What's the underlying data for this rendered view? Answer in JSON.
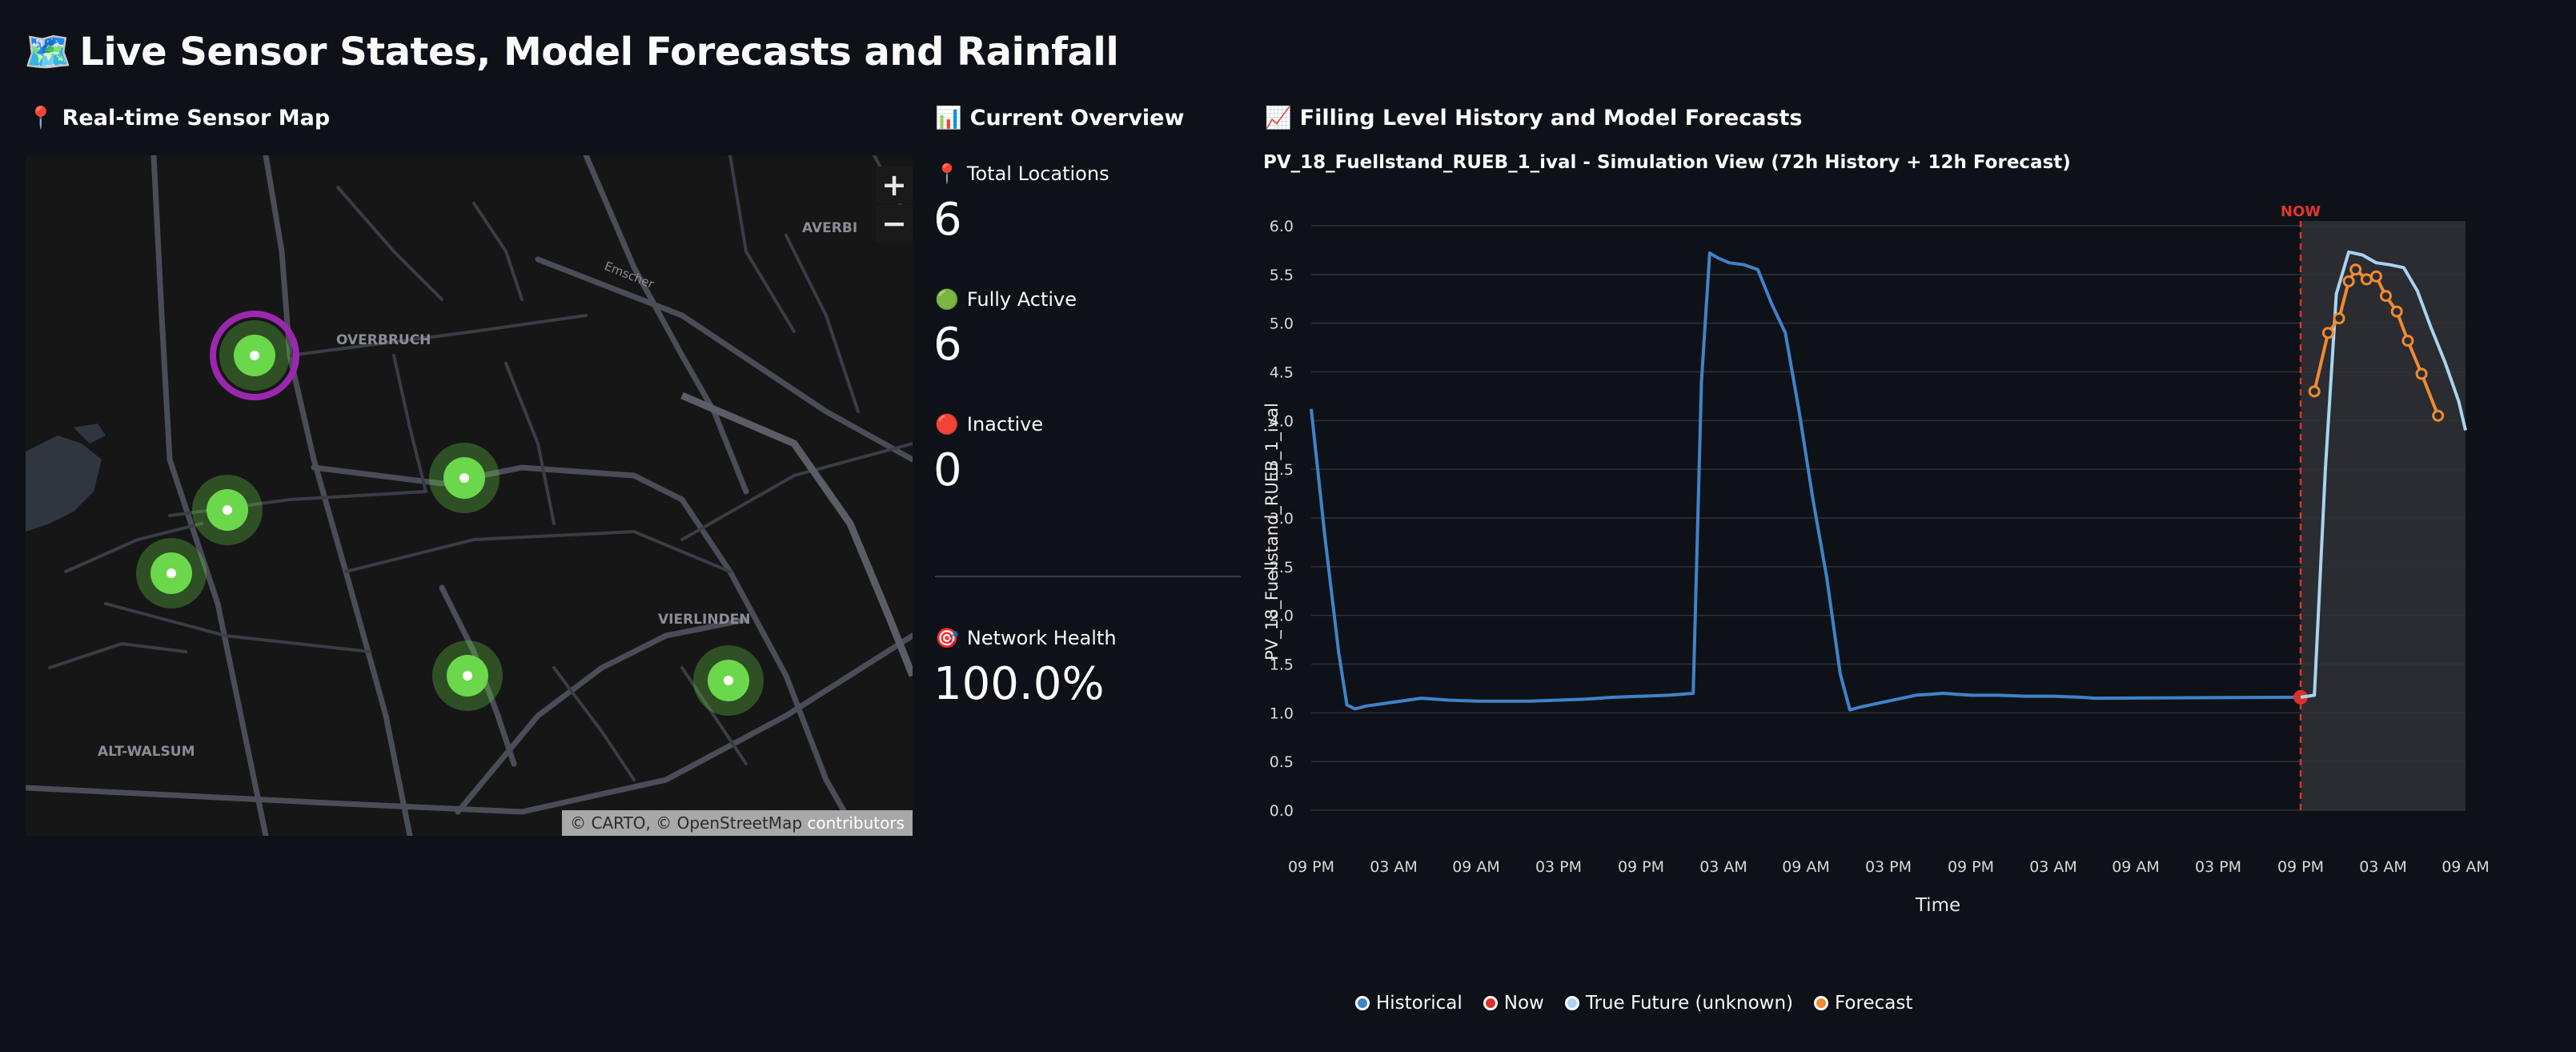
{
  "page": {
    "title_icon": "🗺️",
    "title": "Live Sensor States, Model Forecasts and Rainfall"
  },
  "map_section": {
    "icon": "📍",
    "title": "Real-time Sensor Map",
    "zoom_in": "+",
    "zoom_out": "−",
    "labels": [
      "OVERBRUCH",
      "VIERLINDEN",
      "ALT-WALSUM",
      "AVERBI",
      "Emscher"
    ],
    "attribution_prefix": "© CARTO, © OpenStreetMap",
    "attribution_link": "contributors",
    "markers": [
      {
        "selected": true
      },
      {
        "selected": false
      },
      {
        "selected": false
      },
      {
        "selected": false
      },
      {
        "selected": false
      },
      {
        "selected": false
      }
    ],
    "colors": {
      "marker": "#6ad84a",
      "selected_ring": "#9b27b0",
      "road": "#4a4d57",
      "water": "#2f3640"
    }
  },
  "overview": {
    "icon": "📊",
    "title": "Current Overview",
    "metrics": [
      {
        "icon": "📍",
        "label": "Total Locations",
        "value": "6"
      },
      {
        "icon": "🟢",
        "label": "Fully Active",
        "value": "6"
      },
      {
        "icon": "🔴",
        "label": "Inactive",
        "value": "0"
      },
      {
        "icon": "🎯",
        "label": "Network Health",
        "value": "100.0%"
      }
    ]
  },
  "forecast": {
    "icon": "📈",
    "title": "Filling Level History and Model Forecasts",
    "subtitle": "PV_18_Fuellstand_RUEB_1_ival - Simulation View (72h History + 12h Forecast)"
  },
  "chart_data": {
    "type": "line",
    "title": "PV_18_Fuellstand_RUEB_1_ival - Simulation View (72h History + 12h Forecast)",
    "xlabel": "Time",
    "ylabel": "PV_18_Fuellstand_RUEB_1_ival",
    "xlim": [
      0,
      84
    ],
    "ylim": [
      0,
      6
    ],
    "yticks": [
      0.0,
      0.5,
      1.0,
      1.5,
      2.0,
      2.5,
      3.0,
      3.5,
      4.0,
      4.5,
      5.0,
      5.5,
      6.0
    ],
    "xticks": [
      {
        "h": 0,
        "label": "09 PM"
      },
      {
        "h": 6,
        "label": "03 AM"
      },
      {
        "h": 12,
        "label": "09 AM"
      },
      {
        "h": 18,
        "label": "03 PM"
      },
      {
        "h": 24,
        "label": "09 PM"
      },
      {
        "h": 30,
        "label": "03 AM"
      },
      {
        "h": 36,
        "label": "09 AM"
      },
      {
        "h": 42,
        "label": "03 PM"
      },
      {
        "h": 48,
        "label": "09 PM"
      },
      {
        "h": 54,
        "label": "03 AM"
      },
      {
        "h": 60,
        "label": "09 AM"
      },
      {
        "h": 66,
        "label": "03 PM"
      },
      {
        "h": 72,
        "label": "09 PM"
      },
      {
        "h": 78,
        "label": "03 AM"
      },
      {
        "h": 84,
        "label": "09 AM"
      }
    ],
    "now_label": "NOW",
    "now_x": 72,
    "forecast_region": [
      72,
      84
    ],
    "grid": true,
    "legend_position": "bottom",
    "colors": {
      "Historical": "#3f83c9",
      "Now": "#d9332b",
      "True Future (unknown)": "#a9d3f0",
      "Forecast": "#f08a32"
    },
    "series": [
      {
        "name": "Historical",
        "points": [
          [
            0,
            4.12
          ],
          [
            1,
            2.8
          ],
          [
            2,
            1.62
          ],
          [
            2.6,
            1.08
          ],
          [
            3.2,
            1.04
          ],
          [
            4,
            1.07
          ],
          [
            6,
            1.11
          ],
          [
            8,
            1.15
          ],
          [
            10,
            1.13
          ],
          [
            12,
            1.12
          ],
          [
            14,
            1.12
          ],
          [
            16,
            1.12
          ],
          [
            18,
            1.13
          ],
          [
            20,
            1.14
          ],
          [
            22,
            1.16
          ],
          [
            24,
            1.17
          ],
          [
            26,
            1.18
          ],
          [
            27.8,
            1.2
          ],
          [
            28.4,
            4.4
          ],
          [
            29,
            5.72
          ],
          [
            29.6,
            5.67
          ],
          [
            30.4,
            5.62
          ],
          [
            31.5,
            5.6
          ],
          [
            32.5,
            5.55
          ],
          [
            33.5,
            5.2
          ],
          [
            34.5,
            4.9
          ],
          [
            35.5,
            4.1
          ],
          [
            36.5,
            3.2
          ],
          [
            37.5,
            2.4
          ],
          [
            38.5,
            1.4
          ],
          [
            39.2,
            1.03
          ],
          [
            40,
            1.06
          ],
          [
            42,
            1.12
          ],
          [
            44,
            1.18
          ],
          [
            46,
            1.2
          ],
          [
            48,
            1.18
          ],
          [
            50,
            1.18
          ],
          [
            52,
            1.17
          ],
          [
            54,
            1.17
          ],
          [
            56,
            1.16
          ],
          [
            57,
            1.15
          ],
          [
            72,
            1.16
          ]
        ]
      },
      {
        "name": "Now",
        "points": [
          [
            72,
            1.16
          ]
        ]
      },
      {
        "name": "True Future (unknown)",
        "points": [
          [
            72,
            1.16
          ],
          [
            73,
            1.18
          ],
          [
            73.8,
            3.5
          ],
          [
            74.6,
            5.3
          ],
          [
            75.5,
            5.73
          ],
          [
            76.5,
            5.7
          ],
          [
            77.5,
            5.62
          ],
          [
            78.5,
            5.6
          ],
          [
            79.5,
            5.57
          ],
          [
            80.5,
            5.33
          ],
          [
            81.5,
            4.95
          ],
          [
            82.5,
            4.6
          ],
          [
            83.5,
            4.2
          ],
          [
            84,
            3.9
          ]
        ]
      },
      {
        "name": "Forecast",
        "points": [
          [
            73,
            4.3
          ],
          [
            74,
            4.9
          ],
          [
            74.8,
            5.05
          ],
          [
            75.5,
            5.43
          ],
          [
            76,
            5.55
          ],
          [
            76.8,
            5.45
          ],
          [
            77.5,
            5.48
          ],
          [
            78.2,
            5.28
          ],
          [
            79,
            5.12
          ],
          [
            79.8,
            4.82
          ],
          [
            80.8,
            4.48
          ],
          [
            82,
            4.05
          ]
        ]
      }
    ]
  }
}
